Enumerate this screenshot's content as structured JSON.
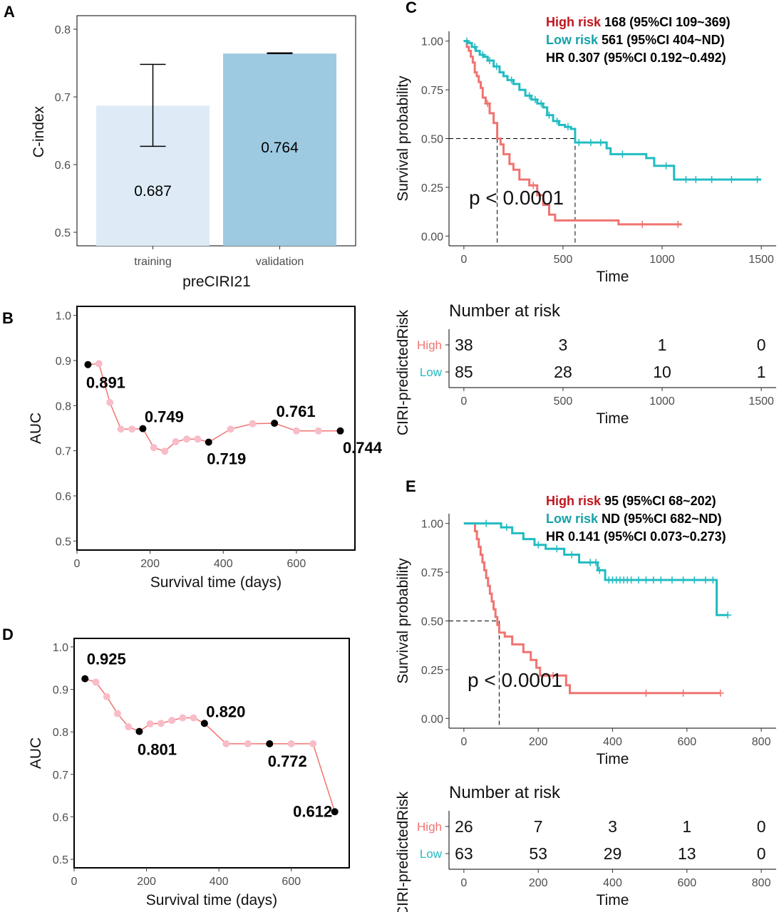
{
  "colors": {
    "high": "#f07470",
    "high_text": "#c0161e",
    "low": "#20bcc2",
    "low_text": "#15a2a8",
    "roc_line": "#f07470",
    "roc_point": "#f9bcc9",
    "roc_key": "#000000",
    "bar_training": "#deebf7",
    "bar_validation": "#9ecae1"
  },
  "chart_data": [
    {
      "id": "A",
      "panel_label": "A",
      "type": "bar",
      "categories": [
        "training",
        "validation"
      ],
      "values": [
        0.687,
        0.764
      ],
      "error_bars": [
        [
          0.627,
          0.748
        ],
        [
          0.764,
          0.765
        ]
      ],
      "value_labels": [
        "0.687",
        "0.764"
      ],
      "xlabel": "preCIRI21",
      "ylabel": "C-index",
      "ylim": [
        0.48,
        0.82
      ],
      "yticks": [
        "0.5",
        "0.6",
        "0.7",
        "0.8"
      ],
      "grid": false
    },
    {
      "id": "B",
      "panel_label": "B",
      "type": "line",
      "xlabel": "Survival time (days)",
      "ylabel": "AUC",
      "xlim": [
        0,
        760
      ],
      "ylim": [
        0.48,
        1.02
      ],
      "xticks": [
        "0",
        "200",
        "400",
        "600"
      ],
      "yticks": [
        "0.5",
        "0.6",
        "0.7",
        "0.8",
        "0.9",
        "1.0"
      ],
      "x": [
        30,
        60,
        90,
        120,
        150,
        180,
        210,
        240,
        270,
        300,
        330,
        360,
        420,
        480,
        540,
        600,
        660,
        720
      ],
      "y": [
        0.891,
        0.893,
        0.807,
        0.748,
        0.748,
        0.749,
        0.707,
        0.699,
        0.72,
        0.726,
        0.726,
        0.719,
        0.748,
        0.76,
        0.761,
        0.744,
        0.744,
        0.744
      ],
      "key_points": [
        {
          "x": 30,
          "y": 0.891,
          "label": "0.891"
        },
        {
          "x": 180,
          "y": 0.749,
          "label": "0.749"
        },
        {
          "x": 360,
          "y": 0.719,
          "label": "0.719"
        },
        {
          "x": 540,
          "y": 0.761,
          "label": "0.761"
        },
        {
          "x": 720,
          "y": 0.744,
          "label": "0.744"
        }
      ]
    },
    {
      "id": "D",
      "panel_label": "D",
      "type": "line",
      "xlabel": "Survival time (days)",
      "ylabel": "AUC",
      "xlim": [
        0,
        760
      ],
      "ylim": [
        0.48,
        1.02
      ],
      "xticks": [
        "0",
        "200",
        "400",
        "600"
      ],
      "yticks": [
        "0.5",
        "0.6",
        "0.7",
        "0.8",
        "0.9",
        "1.0"
      ],
      "x": [
        30,
        60,
        90,
        120,
        150,
        180,
        210,
        240,
        270,
        300,
        330,
        360,
        420,
        480,
        540,
        600,
        660,
        720
      ],
      "y": [
        0.925,
        0.917,
        0.883,
        0.843,
        0.812,
        0.801,
        0.819,
        0.82,
        0.827,
        0.833,
        0.833,
        0.82,
        0.772,
        0.772,
        0.772,
        0.772,
        0.772,
        0.612
      ],
      "key_points": [
        {
          "x": 30,
          "y": 0.925,
          "label": "0.925"
        },
        {
          "x": 180,
          "y": 0.801,
          "label": "0.801"
        },
        {
          "x": 360,
          "y": 0.82,
          "label": "0.820"
        },
        {
          "x": 540,
          "y": 0.772,
          "label": "0.772"
        },
        {
          "x": 720,
          "y": 0.612,
          "label": "0.612"
        }
      ]
    },
    {
      "id": "C",
      "panel_label": "C",
      "type": "line",
      "xlabel": "Time",
      "ylabel": "Survival probability",
      "xlim": [
        -75,
        1575
      ],
      "ylim": [
        -0.05,
        1.05
      ],
      "xticks": [
        "0",
        "500",
        "1000",
        "1500"
      ],
      "yticks": [
        "0.00",
        "0.25",
        "0.50",
        "0.75",
        "1.00"
      ],
      "legend": [
        {
          "group": "High risk",
          "stat": "168 (95%CI 109~369)"
        },
        {
          "group": "Low risk",
          "stat": "561 (95%CI 404~ND)"
        },
        {
          "group": "HR",
          "stat": "0.307 (95%CI 0.192~0.492)"
        }
      ],
      "pvalue": "p < 0.0001",
      "median_lines": [
        168,
        561
      ],
      "series": [
        {
          "name": "High risk",
          "color_key": "high",
          "x": [
            0,
            15,
            25,
            35,
            45,
            55,
            65,
            75,
            85,
            95,
            110,
            130,
            150,
            168,
            185,
            200,
            230,
            250,
            280,
            300,
            330,
            370,
            400,
            430,
            460,
            780,
            1100
          ],
          "y": [
            1.0,
            0.97,
            0.95,
            0.92,
            0.89,
            0.84,
            0.82,
            0.79,
            0.76,
            0.71,
            0.68,
            0.63,
            0.58,
            0.5,
            0.47,
            0.42,
            0.37,
            0.34,
            0.29,
            0.29,
            0.26,
            0.21,
            0.16,
            0.11,
            0.08,
            0.06,
            0.06
          ],
          "censor_x": [
            120,
            350,
            900,
            1080
          ]
        },
        {
          "name": "Low risk",
          "color_key": "low",
          "x": [
            0,
            20,
            40,
            60,
            80,
            100,
            120,
            150,
            180,
            200,
            220,
            250,
            280,
            310,
            340,
            370,
            400,
            420,
            450,
            480,
            510,
            540,
            561,
            600,
            720,
            740,
            920,
            960,
            1060,
            1500
          ],
          "y": [
            1.0,
            0.99,
            0.97,
            0.95,
            0.93,
            0.92,
            0.9,
            0.87,
            0.84,
            0.82,
            0.8,
            0.78,
            0.75,
            0.72,
            0.7,
            0.68,
            0.66,
            0.62,
            0.59,
            0.57,
            0.56,
            0.55,
            0.48,
            0.48,
            0.45,
            0.42,
            0.4,
            0.36,
            0.29,
            0.29
          ],
          "censor_x": [
            15,
            55,
            95,
            130,
            165,
            240,
            330,
            360,
            390,
            430,
            470,
            525,
            580,
            640,
            690,
            800,
            1020,
            1120,
            1170,
            1250,
            1350,
            1480
          ]
        }
      ],
      "risk_table": {
        "title": "Number at risk",
        "ylabel": "CIRI-predictedRisk",
        "xlabel": "Time",
        "times": [
          "0",
          "500",
          "1000",
          "1500"
        ],
        "rows": [
          {
            "group": "High",
            "color_key": "high",
            "counts": [
              "38",
              "3",
              "1",
              "0"
            ]
          },
          {
            "group": "Low",
            "color_key": "low",
            "counts": [
              "85",
              "28",
              "10",
              "1"
            ]
          }
        ]
      }
    },
    {
      "id": "E",
      "panel_label": "E",
      "type": "line",
      "xlabel": "Time",
      "ylabel": "Survival probability",
      "xlim": [
        -40,
        840
      ],
      "ylim": [
        -0.05,
        1.05
      ],
      "xticks": [
        "0",
        "200",
        "400",
        "600",
        "800"
      ],
      "yticks": [
        "0.00",
        "0.25",
        "0.50",
        "0.75",
        "1.00"
      ],
      "legend": [
        {
          "group": "High risk",
          "stat": "95 (95%CI 68~202)"
        },
        {
          "group": "Low risk",
          "stat": "ND (95%CI 682~ND)"
        },
        {
          "group": "HR",
          "stat": "0.141 (95%CI 0.073~0.273)"
        }
      ],
      "pvalue": "p < 0.0001",
      "median_lines": [
        95
      ],
      "series": [
        {
          "name": "High risk",
          "color_key": "high",
          "x": [
            0,
            25,
            30,
            35,
            40,
            45,
            50,
            55,
            60,
            65,
            70,
            75,
            80,
            85,
            90,
            95,
            110,
            130,
            160,
            180,
            195,
            205,
            275,
            285,
            690
          ],
          "y": [
            1.0,
            1.0,
            0.96,
            0.92,
            0.88,
            0.84,
            0.8,
            0.76,
            0.72,
            0.68,
            0.64,
            0.6,
            0.56,
            0.52,
            0.48,
            0.44,
            0.42,
            0.38,
            0.34,
            0.3,
            0.26,
            0.22,
            0.17,
            0.13,
            0.13
          ],
          "censor_x": [
            240,
            490,
            590,
            690
          ]
        },
        {
          "name": "Low risk",
          "color_key": "low",
          "x": [
            0,
            80,
            100,
            130,
            160,
            190,
            220,
            270,
            310,
            360,
            380,
            680,
            710
          ],
          "y": [
            1.0,
            1.0,
            0.98,
            0.95,
            0.92,
            0.89,
            0.87,
            0.84,
            0.8,
            0.76,
            0.71,
            0.53,
            0.53
          ],
          "censor_x": [
            60,
            115,
            200,
            250,
            290,
            340,
            355,
            365,
            390,
            400,
            410,
            420,
            430,
            440,
            450,
            470,
            490,
            510,
            530,
            560,
            590,
            620,
            650,
            670,
            710
          ]
        }
      ],
      "risk_table": {
        "title": "Number at risk",
        "ylabel": "CIRI-predictedRisk",
        "xlabel": "Time",
        "times": [
          "0",
          "200",
          "400",
          "600",
          "800"
        ],
        "rows": [
          {
            "group": "High",
            "color_key": "high",
            "counts": [
              "26",
              "7",
              "3",
              "1",
              "0"
            ]
          },
          {
            "group": "Low",
            "color_key": "low",
            "counts": [
              "63",
              "53",
              "29",
              "13",
              "0"
            ]
          }
        ]
      }
    }
  ]
}
